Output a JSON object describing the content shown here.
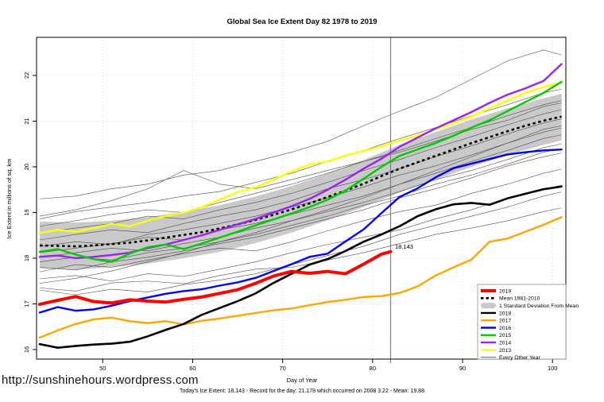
{
  "footer": {
    "url": "http://sunshinehours.wordpress.com",
    "caption": "Today's Ice Extent: 18.143  - Record for the day: 21.178 which occurred on 2008 3.22  - Mean: 19.88"
  },
  "chart_data": {
    "type": "line",
    "title": "Global Sea Ice Extent Day 82 1978 to 2019",
    "xlabel": "Day of Year",
    "ylabel": "Ice Extent in millions of sq. km",
    "xlim": [
      43,
      101
    ],
    "ylim": [
      15.8,
      22.85
    ],
    "xticks": [
      50,
      60,
      70,
      80,
      90,
      100
    ],
    "yticks": [
      16,
      17,
      18,
      19,
      20,
      21,
      22
    ],
    "grid": "dotted",
    "legend_position": "bottom-right",
    "vline": {
      "x": 82,
      "color": "#808080"
    },
    "annotation": {
      "text": "18.143",
      "x": 82,
      "value": 18.143,
      "color": "#FF0000"
    },
    "x_main": [
      43,
      45,
      47,
      49,
      51,
      53,
      55,
      57,
      59,
      61,
      63,
      65,
      67,
      69,
      71,
      73,
      75,
      77,
      79,
      81,
      83,
      85,
      87,
      89,
      91,
      93,
      95,
      97,
      99,
      101
    ],
    "mean": {
      "name": "Mean 1981-2010",
      "color": "#000000",
      "style": "dashed",
      "y": [
        18.28,
        18.27,
        18.26,
        18.28,
        18.31,
        18.34,
        18.39,
        18.45,
        18.51,
        18.57,
        18.65,
        18.74,
        18.84,
        18.95,
        19.07,
        19.2,
        19.34,
        19.48,
        19.63,
        19.8,
        19.96,
        20.1,
        20.24,
        20.38,
        20.52,
        20.65,
        20.78,
        20.9,
        21.01,
        21.1
      ]
    },
    "band": {
      "name": "1 Standard Deviation From Mean",
      "color": "#C9C9C9",
      "x": [
        43,
        47,
        51,
        55,
        59,
        63,
        67,
        71,
        75,
        79,
        83,
        87,
        91,
        95,
        99,
        101
      ],
      "upper": [
        18.8,
        18.78,
        18.82,
        18.9,
        19.02,
        19.16,
        19.35,
        19.58,
        19.85,
        20.15,
        20.48,
        20.76,
        21.04,
        21.28,
        21.5,
        21.6
      ],
      "lower": [
        17.78,
        17.75,
        17.8,
        17.88,
        18.0,
        18.14,
        18.33,
        18.56,
        18.83,
        19.12,
        19.44,
        19.72,
        20.0,
        20.26,
        20.48,
        20.58
      ]
    },
    "series": [
      {
        "name": "2013",
        "color": "#FFFF00",
        "width": 2.4,
        "y": [
          18.55,
          18.62,
          18.58,
          18.66,
          18.75,
          18.7,
          18.82,
          18.92,
          19.0,
          19.12,
          19.28,
          19.45,
          19.55,
          19.72,
          19.9,
          20.05,
          20.12,
          20.25,
          20.35,
          20.45,
          20.58,
          20.68,
          20.82,
          20.95,
          21.1,
          21.28,
          21.45,
          21.62,
          21.75,
          21.85
        ]
      },
      {
        "name": "2014",
        "color": "#A020F0",
        "width": 2.4,
        "y": [
          18.03,
          18.06,
          18.0,
          18.03,
          18.07,
          18.12,
          18.22,
          18.3,
          18.4,
          18.5,
          18.62,
          18.74,
          18.86,
          19.0,
          19.14,
          19.3,
          19.5,
          19.72,
          19.96,
          20.18,
          20.44,
          20.64,
          20.84,
          21.02,
          21.2,
          21.4,
          21.58,
          21.72,
          21.88,
          22.25
        ]
      },
      {
        "name": "2015",
        "color": "#00CC00",
        "width": 2.4,
        "y": [
          18.14,
          18.2,
          18.08,
          17.98,
          17.92,
          18.1,
          18.24,
          18.3,
          18.2,
          18.32,
          18.45,
          18.58,
          18.72,
          18.85,
          18.98,
          19.12,
          19.28,
          19.48,
          19.74,
          20.0,
          20.24,
          20.38,
          20.52,
          20.68,
          20.86,
          21.02,
          21.22,
          21.42,
          21.62,
          21.86
        ]
      },
      {
        "name": "2016",
        "color": "#0000FF",
        "width": 2.4,
        "y": [
          16.81,
          16.93,
          16.85,
          16.88,
          16.96,
          17.06,
          17.14,
          17.22,
          17.28,
          17.32,
          17.4,
          17.47,
          17.57,
          17.72,
          17.87,
          18.03,
          18.1,
          18.37,
          18.63,
          18.99,
          19.34,
          19.53,
          19.77,
          19.97,
          20.07,
          20.17,
          20.27,
          20.32,
          20.36,
          20.38
        ]
      },
      {
        "name": "2017",
        "color": "#FFA500",
        "width": 2.4,
        "y": [
          16.26,
          16.42,
          16.56,
          16.66,
          16.7,
          16.62,
          16.58,
          16.62,
          16.55,
          16.63,
          16.68,
          16.74,
          16.8,
          16.86,
          16.9,
          16.97,
          17.04,
          17.09,
          17.15,
          17.17,
          17.24,
          17.38,
          17.62,
          17.8,
          17.97,
          18.36,
          18.43,
          18.58,
          18.73,
          18.9
        ]
      },
      {
        "name": "2018",
        "color": "#000000",
        "width": 2.6,
        "y": [
          16.12,
          16.04,
          16.08,
          16.11,
          16.13,
          16.17,
          16.29,
          16.43,
          16.56,
          16.76,
          16.91,
          17.06,
          17.23,
          17.46,
          17.66,
          17.86,
          17.98,
          18.16,
          18.36,
          18.52,
          18.7,
          18.92,
          19.07,
          19.18,
          19.21,
          19.17,
          19.31,
          19.41,
          19.51,
          19.57
        ]
      },
      {
        "name": "2019",
        "color": "#FF0000",
        "width": 4,
        "x": [
          43,
          45,
          47,
          49,
          51,
          53,
          55,
          57,
          59,
          61,
          63,
          65,
          67,
          69,
          71,
          73,
          75,
          77,
          79,
          81,
          82
        ],
        "y": [
          16.99,
          17.08,
          17.16,
          17.05,
          17.02,
          17.09,
          17.06,
          17.04,
          17.1,
          17.15,
          17.23,
          17.31,
          17.45,
          17.61,
          17.71,
          17.67,
          17.71,
          17.66,
          17.87,
          18.09,
          18.143
        ]
      }
    ],
    "background": {
      "name": "Every Other Year",
      "color": "#4D4D4D",
      "x": [
        43,
        47,
        51,
        55,
        59,
        63,
        67,
        71,
        75,
        79,
        83,
        87,
        91,
        95,
        99,
        101
      ],
      "lines": [
        [
          17.35,
          17.28,
          17.46,
          17.5,
          17.44,
          17.62,
          17.76,
          17.8,
          17.96,
          18.12,
          18.32,
          18.52,
          18.66,
          18.82,
          19.02,
          19.1
        ],
        [
          17.55,
          17.62,
          17.5,
          17.66,
          17.6,
          17.76,
          17.92,
          18.12,
          18.3,
          18.46,
          18.62,
          18.86,
          19.06,
          19.32,
          19.5,
          19.6
        ],
        [
          17.7,
          17.86,
          17.8,
          17.96,
          18.1,
          18.22,
          18.16,
          18.36,
          18.6,
          18.82,
          19.02,
          19.16,
          19.42,
          19.62,
          19.86,
          19.95
        ],
        [
          17.3,
          17.2,
          17.32,
          17.26,
          17.42,
          17.52,
          17.66,
          17.86,
          18.06,
          18.26,
          18.52,
          18.72,
          18.92,
          19.12,
          19.36,
          19.45
        ],
        [
          17.8,
          17.74,
          17.92,
          18.02,
          18.16,
          18.32,
          18.46,
          18.66,
          18.86,
          19.06,
          19.32,
          19.52,
          19.76,
          20.02,
          20.22,
          20.3
        ],
        [
          17.92,
          18.02,
          17.96,
          18.12,
          18.22,
          18.36,
          18.52,
          18.72,
          18.92,
          19.16,
          19.36,
          19.62,
          19.82,
          20.06,
          20.32,
          20.4
        ],
        [
          18.02,
          18.12,
          18.22,
          18.16,
          18.32,
          18.46,
          18.66,
          18.82,
          19.02,
          19.22,
          19.46,
          19.72,
          19.92,
          20.16,
          20.42,
          20.5
        ],
        [
          18.12,
          18.22,
          18.32,
          18.46,
          18.4,
          18.62,
          18.76,
          18.96,
          19.16,
          19.36,
          19.62,
          19.86,
          20.12,
          20.36,
          20.62,
          20.7
        ],
        [
          18.26,
          18.36,
          18.3,
          18.52,
          18.62,
          18.76,
          18.92,
          19.12,
          19.32,
          19.56,
          19.82,
          20.02,
          20.26,
          20.52,
          20.76,
          20.85
        ],
        [
          18.4,
          18.52,
          18.62,
          18.56,
          18.76,
          18.92,
          19.06,
          19.26,
          19.52,
          19.72,
          19.96,
          20.22,
          20.46,
          20.72,
          20.96,
          21.05
        ],
        [
          18.56,
          18.66,
          18.76,
          18.92,
          18.86,
          19.06,
          19.22,
          19.42,
          19.66,
          19.92,
          20.16,
          20.42,
          20.66,
          20.92,
          21.16,
          21.25
        ],
        [
          18.7,
          18.82,
          18.96,
          19.06,
          19.0,
          19.22,
          19.42,
          19.62,
          19.86,
          20.12,
          20.36,
          20.62,
          20.86,
          21.12,
          21.36,
          21.45
        ],
        [
          18.86,
          19.02,
          19.12,
          19.22,
          19.36,
          19.46,
          19.66,
          19.86,
          20.12,
          20.36,
          20.62,
          20.86,
          21.12,
          21.36,
          21.62,
          21.7
        ],
        [
          19.3,
          19.36,
          19.52,
          19.62,
          19.82,
          19.92,
          20.12,
          20.32,
          20.56,
          20.9,
          21.22,
          21.52,
          21.92,
          22.32,
          22.56,
          22.45
        ],
        [
          18.92,
          19.06,
          19.26,
          19.52,
          19.92,
          19.62,
          19.52,
          19.72,
          19.92,
          20.12,
          20.32,
          20.56,
          20.82,
          21.02,
          21.32,
          21.4
        ],
        [
          17.45,
          17.56,
          17.72,
          17.92,
          18.12,
          18.36,
          18.56,
          18.82,
          19.06,
          19.32,
          19.62,
          19.92,
          20.22,
          20.52,
          20.82,
          20.9
        ]
      ]
    },
    "legend": [
      {
        "label": "2019",
        "color": "#FF0000",
        "type": "line-thick"
      },
      {
        "label": "Mean 1981-2010",
        "color": "#000000",
        "type": "line-dashed"
      },
      {
        "label": "1 Standard Deviation From Mean",
        "color": "#C9C9C9",
        "type": "band"
      },
      {
        "label": "2018",
        "color": "#000000",
        "type": "line"
      },
      {
        "label": "2017",
        "color": "#FFA500",
        "type": "line"
      },
      {
        "label": "2016",
        "color": "#0000FF",
        "type": "line"
      },
      {
        "label": "2015",
        "color": "#00CC00",
        "type": "line"
      },
      {
        "label": "2014",
        "color": "#A020F0",
        "type": "line"
      },
      {
        "label": "2013",
        "color": "#FFFF00",
        "type": "line"
      },
      {
        "label": "Every Other Year",
        "color": "#4D4D4D",
        "type": "line-thin"
      }
    ]
  }
}
